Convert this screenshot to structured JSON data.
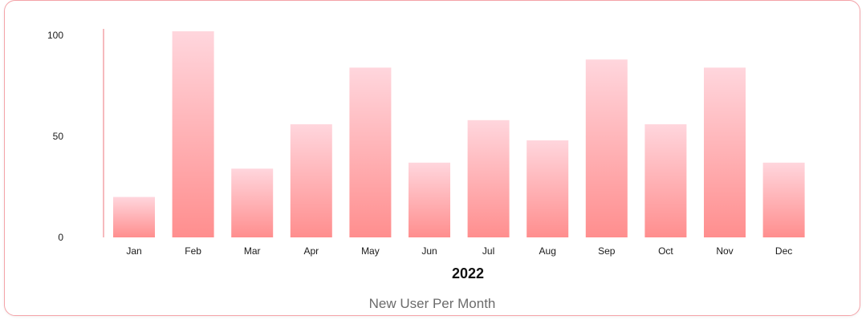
{
  "caption": "New User Per Month",
  "colors": {
    "bar_top": "#ffd6dd",
    "bar_bottom": "#ff8e8e",
    "axis": "#f4a3a8",
    "card_border": "#f4a3a8"
  },
  "chart_data": {
    "type": "bar",
    "title": "",
    "xlabel": "2022",
    "ylabel": "",
    "categories": [
      "Jan",
      "Feb",
      "Mar",
      "Apr",
      "May",
      "Jun",
      "Jul",
      "Aug",
      "Sep",
      "Oct",
      "Nov",
      "Dec"
    ],
    "values": [
      20,
      102,
      34,
      56,
      84,
      37,
      58,
      48,
      88,
      56,
      84,
      37
    ],
    "ylim": [
      0,
      100
    ],
    "yticks": [
      0,
      50,
      100
    ],
    "ytick_labels": [
      "0",
      "50",
      "100"
    ],
    "grid": false,
    "legend": "none"
  }
}
